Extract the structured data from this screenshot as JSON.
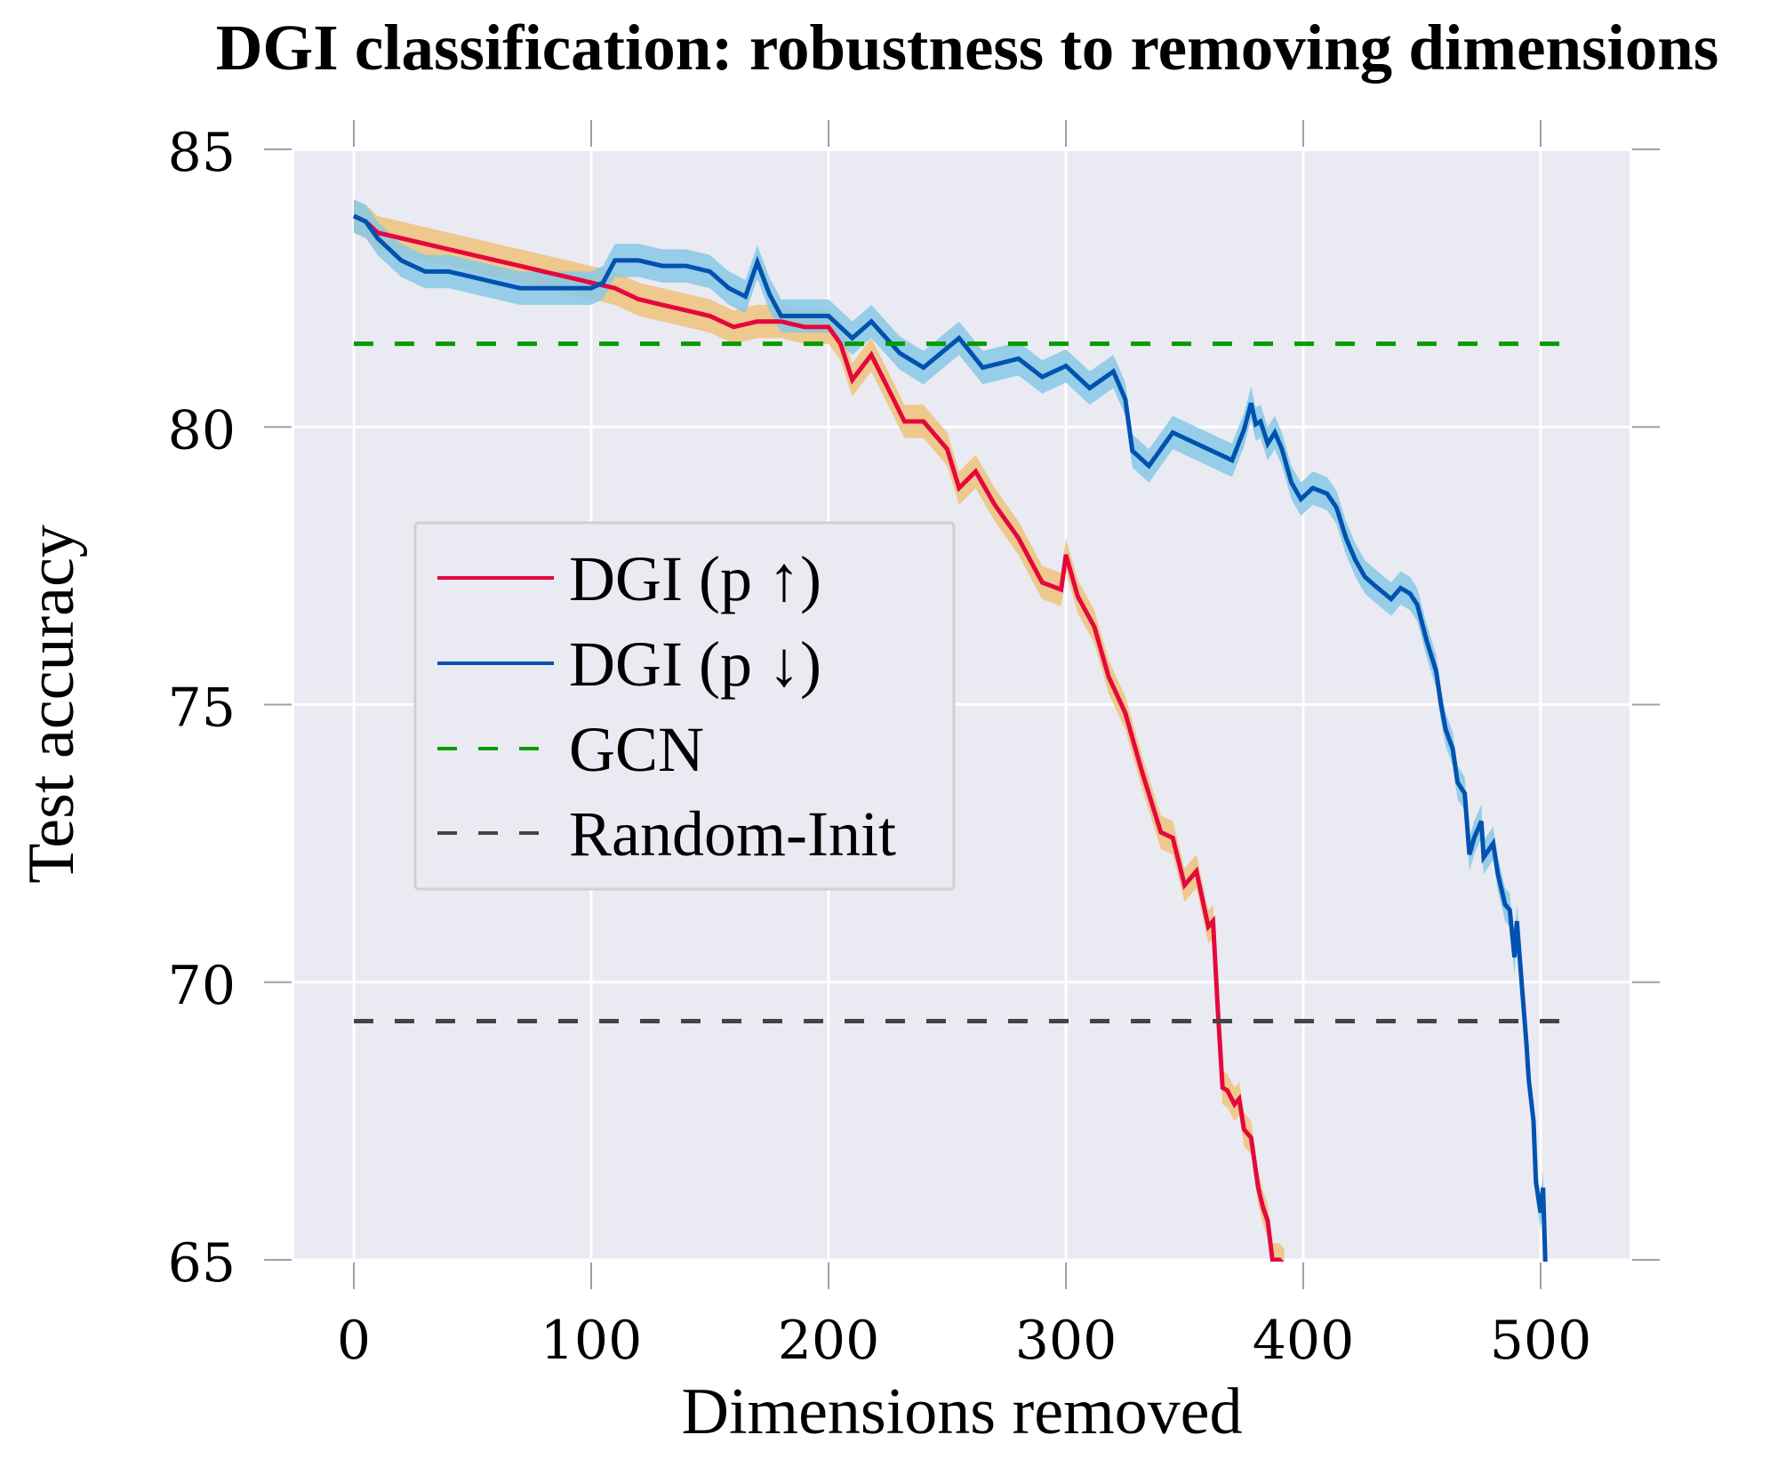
{
  "chart_data": {
    "type": "line",
    "title": "DGI classification: robustness to removing dimensions",
    "xlabel": "Dimensions removed",
    "ylabel": "Test accuracy",
    "xlim": [
      -25,
      537
    ],
    "ylim": [
      65,
      85
    ],
    "xticks": [
      0,
      100,
      200,
      300,
      400,
      500
    ],
    "yticks": [
      65,
      70,
      75,
      80,
      85
    ],
    "xtick_labels": [
      "0",
      "100",
      "200",
      "300",
      "400",
      "500"
    ],
    "ytick_labels": [
      "65",
      "70",
      "75",
      "80",
      "85"
    ],
    "grid": true,
    "legend_position": "center-left",
    "series": [
      {
        "name": "DGI (p ↑)",
        "legend_label": "DGI (p ↑)",
        "style": "solid",
        "color": "#e4083e",
        "band_color": "#eec27a",
        "band_halfwidth": 0.3,
        "x": [
          0,
          5,
          10,
          20,
          30,
          40,
          50,
          60,
          70,
          80,
          90,
          100,
          110,
          120,
          130,
          140,
          150,
          160,
          170,
          180,
          190,
          200,
          205,
          210,
          218,
          225,
          232,
          240,
          250,
          255,
          262,
          270,
          280,
          290,
          298,
          300,
          305,
          312,
          318,
          325,
          332,
          340,
          345,
          350,
          355,
          360,
          362,
          364,
          366,
          368,
          371,
          373,
          375,
          378,
          381,
          383,
          385,
          387,
          390,
          392
        ],
        "y": [
          83.8,
          83.7,
          83.5,
          83.4,
          83.3,
          83.2,
          83.1,
          83.0,
          82.9,
          82.8,
          82.7,
          82.6,
          82.5,
          82.3,
          82.2,
          82.1,
          82.0,
          81.8,
          81.9,
          81.9,
          81.8,
          81.8,
          81.5,
          80.85,
          81.3,
          80.7,
          80.1,
          80.1,
          79.6,
          78.9,
          79.2,
          78.6,
          78.0,
          77.2,
          77.07,
          77.7,
          76.95,
          76.4,
          75.5,
          74.85,
          73.8,
          72.7,
          72.6,
          71.75,
          72.0,
          71.0,
          71.1,
          69.5,
          68.1,
          68.05,
          67.8,
          67.9,
          67.35,
          67.2,
          66.3,
          65.95,
          65.7,
          65.0,
          65.0,
          64.9
        ]
      },
      {
        "name": "DGI (p ↓)",
        "legend_label": "DGI (p ↓)",
        "style": "solid",
        "color": "#0052b0",
        "band_color": "#87c8e6",
        "band_halfwidth": 0.3,
        "x": [
          0,
          5,
          10,
          20,
          30,
          40,
          50,
          60,
          70,
          80,
          90,
          100,
          105,
          110,
          120,
          130,
          140,
          150,
          158,
          165,
          170,
          175,
          180,
          190,
          200,
          210,
          218,
          230,
          240,
          255,
          265,
          280,
          290,
          300,
          310,
          320,
          325,
          328,
          335,
          345,
          360,
          370,
          375,
          378,
          380,
          382,
          385,
          388,
          391,
          395,
          399,
          404,
          410,
          414,
          418,
          422,
          426,
          430,
          437,
          441,
          445,
          448,
          452,
          456,
          458,
          460,
          463,
          465,
          468,
          470,
          472,
          475,
          476,
          480,
          482,
          485,
          487,
          489,
          490,
          492,
          494,
          495,
          497,
          498,
          500,
          501,
          502
        ],
        "y": [
          83.8,
          83.7,
          83.4,
          83.0,
          82.8,
          82.8,
          82.7,
          82.6,
          82.5,
          82.5,
          82.5,
          82.5,
          82.6,
          83.0,
          83.0,
          82.9,
          82.9,
          82.8,
          82.5,
          82.35,
          82.97,
          82.4,
          82.0,
          82.0,
          82.0,
          81.6,
          81.9,
          81.33,
          81.07,
          81.6,
          81.07,
          81.23,
          80.9,
          81.1,
          80.7,
          81.0,
          80.5,
          79.57,
          79.3,
          79.9,
          79.6,
          79.4,
          79.95,
          80.43,
          80.05,
          80.1,
          79.7,
          79.9,
          79.6,
          79.0,
          78.7,
          78.9,
          78.8,
          78.55,
          78.0,
          77.6,
          77.3,
          77.15,
          76.9,
          77.1,
          77.0,
          76.8,
          76.15,
          75.6,
          75.0,
          74.55,
          74.2,
          73.6,
          73.4,
          72.3,
          72.6,
          72.9,
          72.25,
          72.5,
          71.95,
          71.4,
          71.3,
          70.45,
          71.1,
          70.0,
          68.9,
          68.25,
          67.5,
          66.4,
          65.85,
          66.3,
          64.95
        ]
      },
      {
        "name": "GCN",
        "legend_label": "GCN",
        "style": "dashed",
        "color": "#079c00",
        "x": [
          0,
          512
        ],
        "y": [
          81.5,
          81.5
        ]
      },
      {
        "name": "Random-Init",
        "legend_label": "Random-Init",
        "style": "dashed",
        "color": "#444444",
        "x": [
          0,
          512
        ],
        "y": [
          69.3,
          69.3
        ]
      }
    ]
  },
  "theme": {
    "plot_background": "#eaeaf2",
    "grid_color": "#ffffff",
    "tick_color": "#a0a0a0",
    "legend_border": "#d0d0d0"
  }
}
